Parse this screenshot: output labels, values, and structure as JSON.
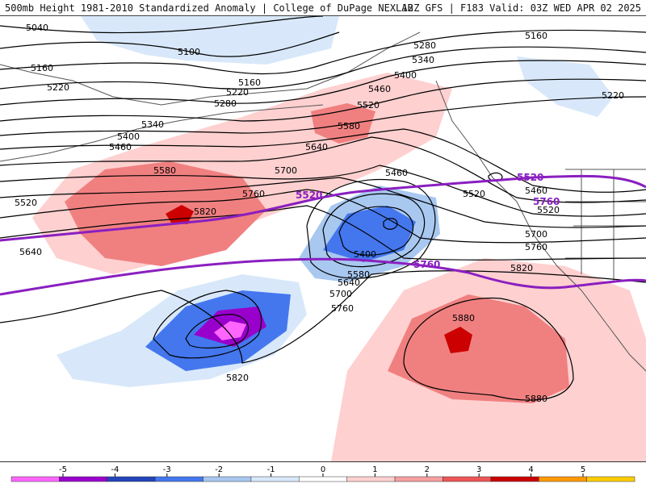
{
  "header": {
    "left": "500mb Height 1981-2010 Standardized Anomaly | College of DuPage NEXLAB",
    "right": "12Z GFS | F183 Valid: 03Z WED APR 02 2025"
  },
  "contour_labels": [
    "5040",
    "5100",
    "5160",
    "5220",
    "5280",
    "5340",
    "5400",
    "5460",
    "5520",
    "5580",
    "5640",
    "5700",
    "5760",
    "5820",
    "5880",
    "5160",
    "5220",
    "5280",
    "5340",
    "5400",
    "5460",
    "5520",
    "5580",
    "5640",
    "5700",
    "5760",
    "5820",
    "5880",
    "5460",
    "5400",
    "5520",
    "5580",
    "5640",
    "5700",
    "5760",
    "5820",
    "5160",
    "5220",
    "5520",
    "5460"
  ],
  "highlight_labels": [
    "5520",
    "5760",
    "5520",
    "5760"
  ],
  "legend": {
    "ticks": [
      "-5",
      "-4",
      "-3",
      "-2",
      "-1",
      "0",
      "1",
      "2",
      "3",
      "4",
      "5"
    ],
    "colors": [
      "#ff66ff",
      "#9900cc",
      "#2244bb",
      "#4477ee",
      "#a8c8f0",
      "#d8e8fa",
      "#ffffff",
      "#ffd0d0",
      "#f5a0a0",
      "#ee5555",
      "#cc0000",
      "#ff9900",
      "#ffcc00"
    ]
  },
  "colors": {
    "contour": "#000000",
    "highlight": "#8a1fc0",
    "coast": "#555555"
  }
}
